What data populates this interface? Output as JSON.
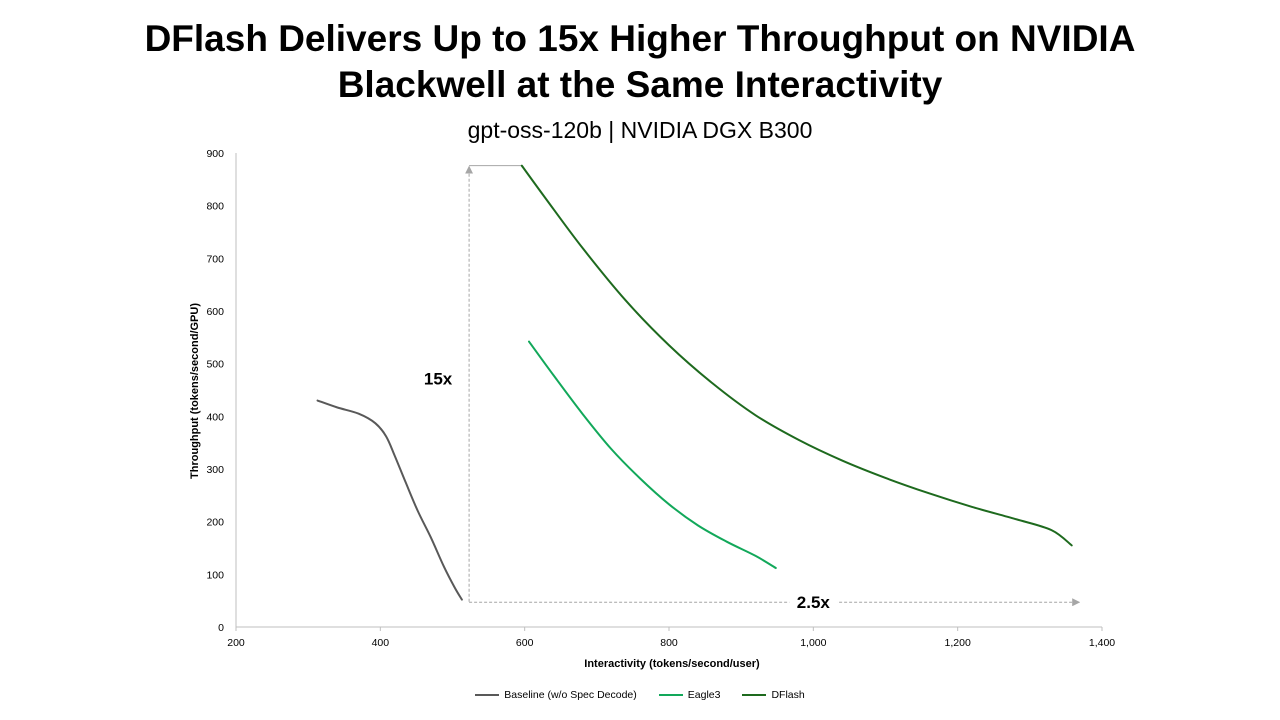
{
  "title_line1": "DFlash Delivers Up to 15x Higher Throughput on NVIDIA",
  "title_line2": "Blackwell at the Same Interactivity",
  "subtitle": "gpt-oss-120b |  NVIDIA DGX B300",
  "colors": {
    "baseline": "#595959",
    "eagle3": "#12a85a",
    "dflash": "#1e6a1e",
    "arrow": "#a6a6a6",
    "axis": "#bfbfbf"
  },
  "chart_data": {
    "type": "line",
    "xlabel": "Interactivity (tokens/second/user)",
    "ylabel": "Throughput (tokens/second/GPU)",
    "xlim": [
      200,
      1400
    ],
    "ylim": [
      0,
      900
    ],
    "x_ticks": [
      "200",
      "400",
      "600",
      "800",
      "1,000",
      "1,200",
      "1,400"
    ],
    "y_ticks": [
      "0",
      "100",
      "200",
      "300",
      "400",
      "500",
      "600",
      "700",
      "800",
      "900"
    ],
    "grid": false,
    "legend_position": "bottom",
    "series": [
      {
        "name": "Baseline (w/o Spec Decode)",
        "color_key": "baseline",
        "x": [
          313,
          340,
          370,
          393,
          408,
          420,
          435,
          452,
          470,
          488,
          503,
          513
        ],
        "y": [
          430,
          417,
          405,
          387,
          362,
          325,
          275,
          220,
          170,
          115,
          75,
          52
        ]
      },
      {
        "name": "Eagle3",
        "color_key": "eagle3",
        "x": [
          606,
          640,
          680,
          720,
          760,
          800,
          840,
          880,
          920,
          948
        ],
        "y": [
          542,
          478,
          405,
          338,
          282,
          233,
          193,
          162,
          135,
          112
        ]
      },
      {
        "name": "DFlash",
        "color_key": "dflash",
        "x": [
          596,
          630,
          680,
          740,
          800,
          860,
          920,
          980,
          1040,
          1100,
          1160,
          1220,
          1280,
          1330,
          1358
        ],
        "y": [
          876,
          812,
          720,
          620,
          535,
          463,
          402,
          355,
          316,
          283,
          254,
          228,
          205,
          184,
          155
        ]
      }
    ],
    "annotations": [
      {
        "text": "15x",
        "type": "vertical-arrow",
        "x": 523,
        "y_from": 48,
        "y_to": 876,
        "top_cap_to_x": 595,
        "label_y": 460,
        "label_x": 480
      },
      {
        "text": "2.5x",
        "type": "horizontal-arrow",
        "y": 47,
        "x_from": 523,
        "x_to": 1367,
        "label_x": 1000
      }
    ]
  }
}
